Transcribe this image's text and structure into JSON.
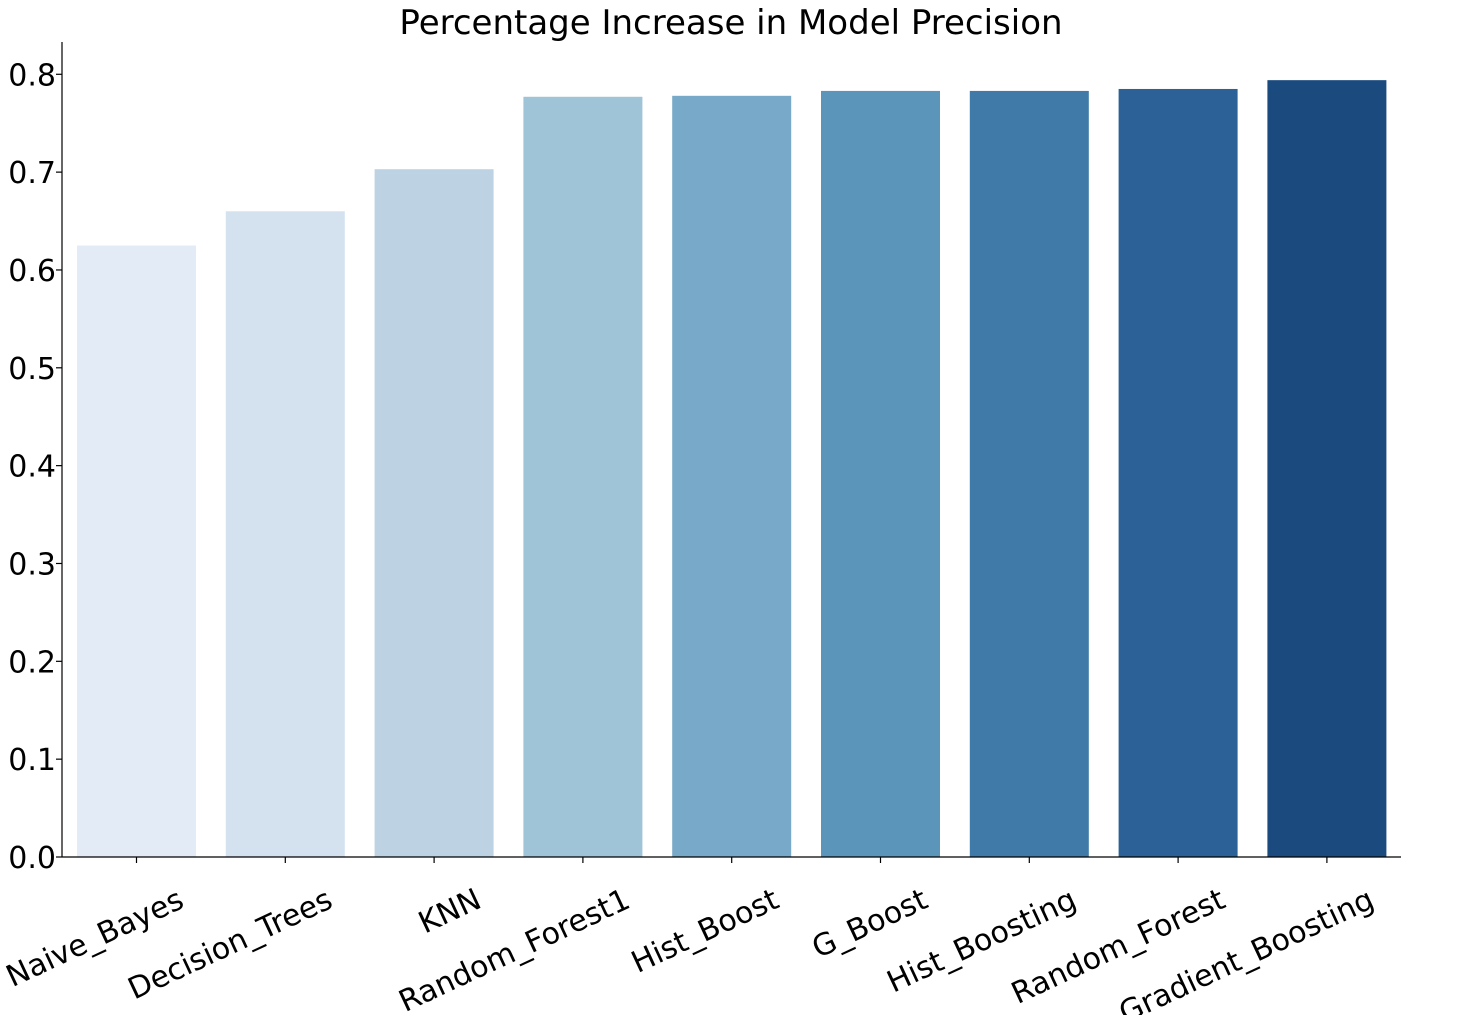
{
  "chart_data": {
    "type": "bar",
    "title": "Percentage Increase in Model Precision",
    "xlabel": "",
    "ylabel": "",
    "categories": [
      "Naive_Bayes",
      "Decision_Trees",
      "KNN",
      "Random_Forest1",
      "Hist_Boost",
      "G_Boost",
      "Hist_Boosting",
      "Random_Forest",
      "Gradient_Boosting"
    ],
    "values": [
      0.625,
      0.66,
      0.703,
      0.777,
      0.778,
      0.783,
      0.783,
      0.785,
      0.794
    ],
    "colors": [
      "#e3ecf6",
      "#d4e2f0",
      "#bdd3e4",
      "#9fc3d7",
      "#79a9c8",
      "#5b95ba",
      "#3f7aa8",
      "#2b6197",
      "#1b4a7e"
    ],
    "ylim": [
      0,
      0.833
    ],
    "yticks": [
      0.0,
      0.1,
      0.2,
      0.3,
      0.4,
      0.5,
      0.6,
      0.7,
      0.8
    ],
    "ytick_labels": [
      "0.0",
      "0.1",
      "0.2",
      "0.3",
      "0.4",
      "0.5",
      "0.6",
      "0.7",
      "0.8"
    ],
    "xtick_rotation_deg": -25,
    "grid": false,
    "legend": "none"
  }
}
